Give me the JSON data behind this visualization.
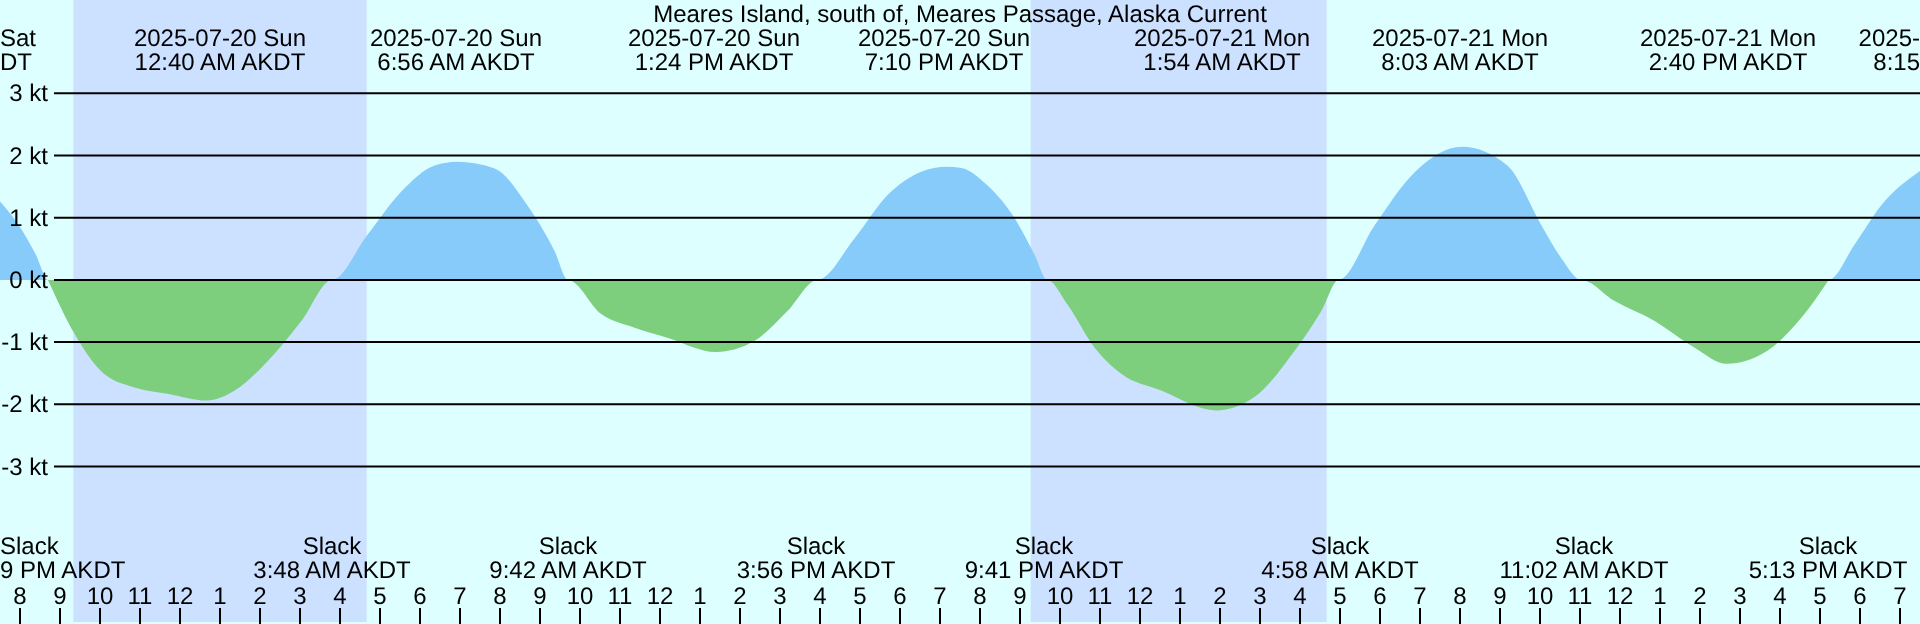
{
  "chart_data": {
    "type": "area",
    "title": "Meares Island, south of, Meares Passage, Alaska Current",
    "series": [
      {
        "color": "#87cbfa",
        "x": [
          "2025-07-19T19:30",
          "2025-07-19T20:00",
          "2025-07-19T20:24",
          "2025-07-19T20:42",
          "2025-07-20T03:48",
          "2025-07-20T04:41",
          "2025-07-20T05:32",
          "2025-07-20T06:22",
          "2025-07-20T06:56",
          "2025-07-20T07:52",
          "2025-07-20T08:41",
          "2025-07-20T09:22",
          "2025-07-20T09:42",
          "2025-07-20T15:56",
          "2025-07-20T16:52",
          "2025-07-20T17:41",
          "2025-07-20T18:32",
          "2025-07-20T19:10",
          "2025-07-20T19:32",
          "2025-07-20T20:11",
          "2025-07-20T20:52",
          "2025-07-20T21:22",
          "2025-07-20T21:41",
          "2025-07-21T04:58",
          "2025-07-21T05:52",
          "2025-07-21T06:52",
          "2025-07-21T08:03",
          "2025-07-21T09:11",
          "2025-07-21T10:02",
          "2025-07-21T10:32",
          "2025-07-21T11:02",
          "2025-07-21T17:13",
          "2025-07-21T17:52",
          "2025-07-21T18:32",
          "2025-07-21T19:30"
        ],
        "values": [
          1.26,
          0.85,
          0.4,
          0,
          0,
          0.72,
          1.42,
          1.84,
          1.9,
          1.79,
          1.2,
          0.46,
          0,
          0,
          0.67,
          1.36,
          1.74,
          1.82,
          1.8,
          1.52,
          0.99,
          0.4,
          0,
          0,
          0.88,
          1.73,
          2.14,
          1.84,
          0.88,
          0.35,
          0,
          0,
          0.57,
          1.2,
          1.75
        ]
      },
      {
        "color": "#7dce7d",
        "x": [
          "2025-07-19T20:42",
          "2025-07-19T21:22",
          "2025-07-19T22:01",
          "2025-07-19T22:52",
          "2025-07-19T23:41",
          "2025-07-20T00:40",
          "2025-07-20T01:22",
          "2025-07-20T02:11",
          "2025-07-20T03:02",
          "2025-07-20T03:48",
          "2025-07-20T09:42",
          "2025-07-20T10:32",
          "2025-07-20T11:22",
          "2025-07-20T12:11",
          "2025-07-20T13:24",
          "2025-07-20T14:22",
          "2025-07-20T15:11",
          "2025-07-20T15:56",
          "2025-07-20T21:41",
          "2025-07-20T22:11",
          "2025-07-20T22:52",
          "2025-07-20T23:32",
          "2025-07-21T00:32",
          "2025-07-21T01:54",
          "2025-07-21T02:52",
          "2025-07-21T03:52",
          "2025-07-21T04:32",
          "2025-07-21T04:58",
          "2025-07-21T11:02",
          "2025-07-21T11:52",
          "2025-07-21T12:52",
          "2025-07-21T13:52",
          "2025-07-21T14:40",
          "2025-07-21T15:41",
          "2025-07-21T16:32",
          "2025-07-21T17:13"
        ],
        "values": [
          0,
          -0.87,
          -1.46,
          -1.73,
          -1.83,
          -1.94,
          -1.78,
          -1.31,
          -0.66,
          0,
          0,
          -0.55,
          -0.77,
          -0.93,
          -1.16,
          -0.98,
          -0.5,
          0,
          0,
          -0.39,
          -1.09,
          -1.51,
          -1.78,
          -2.1,
          -1.88,
          -1.14,
          -0.5,
          0,
          0,
          -0.34,
          -0.66,
          -1.09,
          -1.35,
          -1.14,
          -0.61,
          0
        ]
      }
    ],
    "xlim": [
      "2025-07-19T19:30",
      "2025-07-21T19:30"
    ],
    "xticks": [
      {
        "value": "2025-07-19T20:00",
        "label": "8"
      },
      {
        "value": "2025-07-19T21:00",
        "label": "9"
      },
      {
        "value": "2025-07-19T22:00",
        "label": "10"
      },
      {
        "value": "2025-07-19T23:00",
        "label": "11"
      },
      {
        "value": "2025-07-20T00:00",
        "label": "12"
      },
      {
        "value": "2025-07-20T01:00",
        "label": "1"
      },
      {
        "value": "2025-07-20T02:00",
        "label": "2"
      },
      {
        "value": "2025-07-20T03:00",
        "label": "3"
      },
      {
        "value": "2025-07-20T04:00",
        "label": "4"
      },
      {
        "value": "2025-07-20T05:00",
        "label": "5"
      },
      {
        "value": "2025-07-20T06:00",
        "label": "6"
      },
      {
        "value": "2025-07-20T07:00",
        "label": "7"
      },
      {
        "value": "2025-07-20T08:00",
        "label": "8"
      },
      {
        "value": "2025-07-20T09:00",
        "label": "9"
      },
      {
        "value": "2025-07-20T10:00",
        "label": "10"
      },
      {
        "value": "2025-07-20T11:00",
        "label": "11"
      },
      {
        "value": "2025-07-20T12:00",
        "label": "12"
      },
      {
        "value": "2025-07-20T13:00",
        "label": "1"
      },
      {
        "value": "2025-07-20T14:00",
        "label": "2"
      },
      {
        "value": "2025-07-20T15:00",
        "label": "3"
      },
      {
        "value": "2025-07-20T16:00",
        "label": "4"
      },
      {
        "value": "2025-07-20T17:00",
        "label": "5"
      },
      {
        "value": "2025-07-20T18:00",
        "label": "6"
      },
      {
        "value": "2025-07-20T19:00",
        "label": "7"
      },
      {
        "value": "2025-07-20T20:00",
        "label": "8"
      },
      {
        "value": "2025-07-20T21:00",
        "label": "9"
      },
      {
        "value": "2025-07-20T22:00",
        "label": "10"
      },
      {
        "value": "2025-07-20T23:00",
        "label": "11"
      },
      {
        "value": "2025-07-21T00:00",
        "label": "12"
      },
      {
        "value": "2025-07-21T01:00",
        "label": "1"
      },
      {
        "value": "2025-07-21T02:00",
        "label": "2"
      },
      {
        "value": "2025-07-21T03:00",
        "label": "3"
      },
      {
        "value": "2025-07-21T04:00",
        "label": "4"
      },
      {
        "value": "2025-07-21T05:00",
        "label": "5"
      },
      {
        "value": "2025-07-21T06:00",
        "label": "6"
      },
      {
        "value": "2025-07-21T07:00",
        "label": "7"
      },
      {
        "value": "2025-07-21T08:00",
        "label": "8"
      },
      {
        "value": "2025-07-21T09:00",
        "label": "9"
      },
      {
        "value": "2025-07-21T10:00",
        "label": "10"
      },
      {
        "value": "2025-07-21T11:00",
        "label": "11"
      },
      {
        "value": "2025-07-21T12:00",
        "label": "12"
      },
      {
        "value": "2025-07-21T13:00",
        "label": "1"
      },
      {
        "value": "2025-07-21T14:00",
        "label": "2"
      },
      {
        "value": "2025-07-21T15:00",
        "label": "3"
      },
      {
        "value": "2025-07-21T16:00",
        "label": "4"
      },
      {
        "value": "2025-07-21T17:00",
        "label": "5"
      },
      {
        "value": "2025-07-21T18:00",
        "label": "6"
      },
      {
        "value": "2025-07-21T19:00",
        "label": "7"
      }
    ],
    "ylim": [
      -5.5,
      4.5
    ],
    "yticks": [
      {
        "value": -3,
        "label": "-3 kt"
      },
      {
        "value": -2,
        "label": "-2 kt"
      },
      {
        "value": -1,
        "label": "-1 kt"
      },
      {
        "value": 0,
        "label": "0 kt"
      },
      {
        "value": 1,
        "label": "1 kt"
      },
      {
        "value": 2,
        "label": "2 kt"
      },
      {
        "value": 3,
        "label": "3 kt"
      }
    ],
    "grid": "y",
    "bands": [
      {
        "axis": "x",
        "from": "2025-07-19T21:20",
        "to": "2025-07-20T04:40",
        "color": "#cce0ff"
      },
      {
        "axis": "x",
        "from": "2025-07-20T21:16",
        "to": "2025-07-21T04:40",
        "color": "#cce0ff"
      }
    ],
    "annotations": [
      "Sat\nDT",
      "2025-07-20 Sun\n12:40 AM AKDT",
      "2025-07-20 Sun\n6:56 AM AKDT",
      "2025-07-20 Sun\n1:24 PM AKDT",
      "2025-07-20 Sun\n7:10 PM AKDT",
      "2025-07-21 Mon\n1:54 AM AKDT",
      "2025-07-21 Mon\n8:03 AM AKDT",
      "2025-07-21 Mon\n2:40 PM AKDT",
      "2025-\n8:15",
      "Slack\n9 PM AKDT",
      "Slack\n3:48 AM AKDT",
      "Slack\n9:42 AM AKDT",
      "Slack\n3:56 PM AKDT",
      "Slack\n9:41 PM AKDT",
      "Slack\n4:58 AM AKDT",
      "Slack\n11:02 AM AKDT",
      "Slack\n5:13 PM AKDT"
    ]
  }
}
